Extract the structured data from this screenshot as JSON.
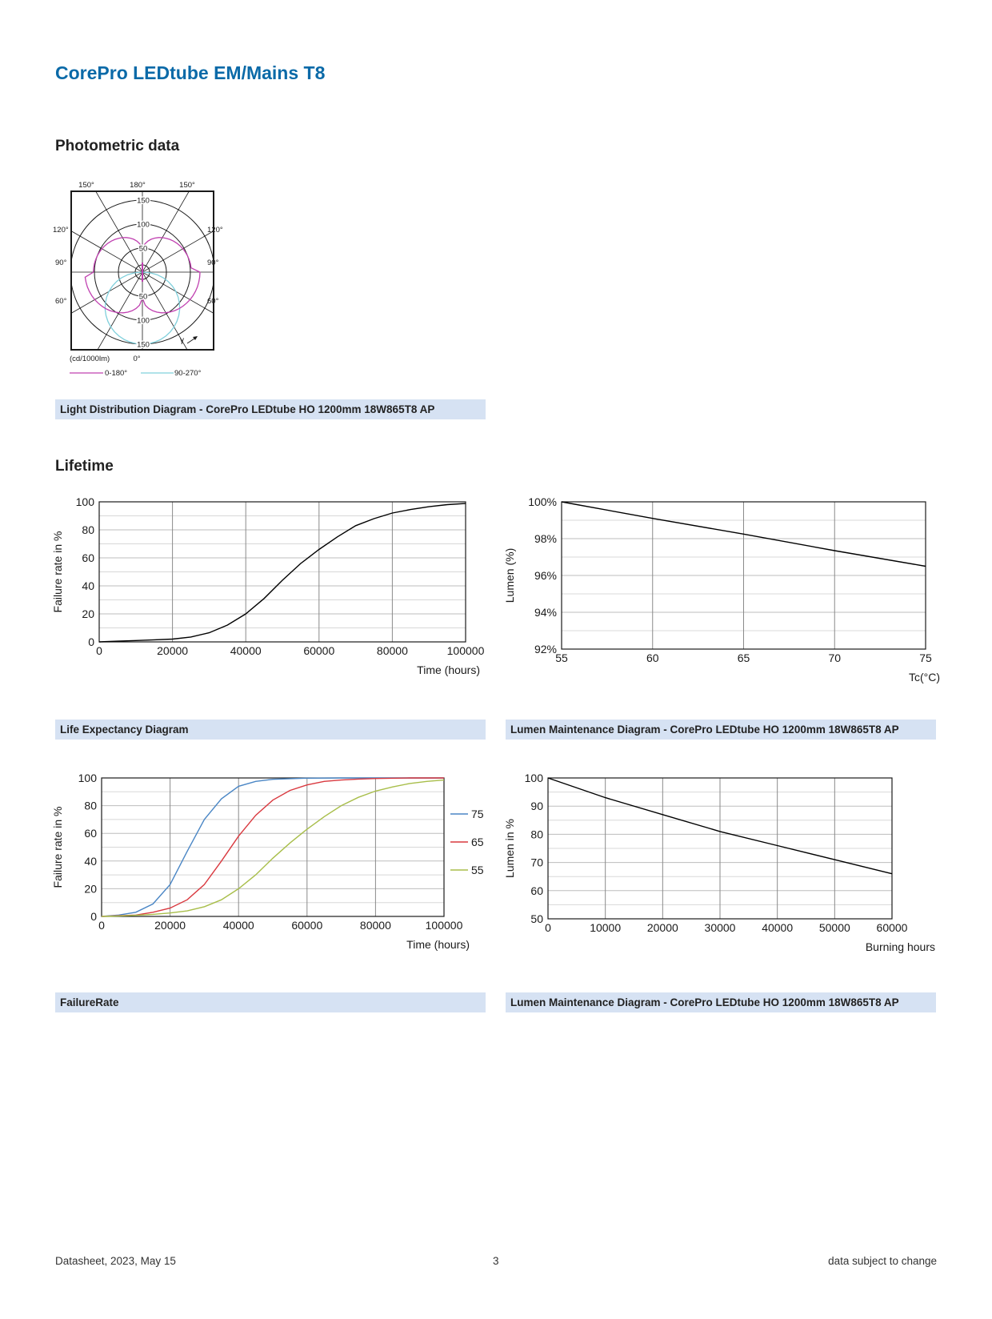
{
  "page": {
    "title": "CorePro LEDtube EM/Mains T8",
    "sections": {
      "photometric": "Photometric data",
      "lifetime": "Lifetime"
    },
    "footer": {
      "left": "Datasheet, 2023, May 15",
      "center": "3",
      "right": "data subject to change"
    }
  },
  "captions": {
    "light_distribution": "Light Distribution Diagram - CorePro LEDtube HO 1200mm 18W865T8 AP",
    "life_expectancy": "Life Expectancy Diagram",
    "lumen_tc": "Lumen Maintenance Diagram - CorePro LEDtube HO 1200mm 18W865T8 AP",
    "failure_rate": "FailureRate",
    "lumen_hours": "Lumen Maintenance Diagram - CorePro LEDtube HO 1200mm 18W865T8 AP"
  },
  "colors": {
    "title": "#0b6aa8",
    "caption_bg": "#d6e2f3",
    "magenta": "#c040b0",
    "cyan": "#80d0dc",
    "blue": "#4a86c5",
    "red": "#d9393f",
    "green": "#a8be4a"
  },
  "chart_data": [
    {
      "id": "polar",
      "type": "other",
      "subtype": "polar light distribution",
      "angle_labels": {
        "top": [
          "150°",
          "180°",
          "150°"
        ],
        "left": [
          "120°",
          "90°",
          "60°"
        ],
        "right": [
          "120°",
          "90°",
          "60°"
        ],
        "bottom": "0°"
      },
      "radial_ticks": [
        "150",
        "100",
        "50",
        "50",
        "100",
        "150"
      ],
      "unit": "(cd/1000lm)",
      "gamma_label": "γ",
      "series": [
        {
          "name": "0-180°",
          "color": "#c040b0",
          "intensity_max": 120
        },
        {
          "name": "90-270°",
          "color": "#80d0dc",
          "intensity_max": 150
        }
      ]
    },
    {
      "id": "life-expectancy",
      "type": "line",
      "xlabel": "Time (hours)",
      "ylabel": "Failure rate in %",
      "xlim": [
        0,
        100000
      ],
      "ylim": [
        0,
        100
      ],
      "x_ticks": [
        "0",
        "20000",
        "40000",
        "60000",
        "80000",
        "100000"
      ],
      "y_ticks": [
        "0",
        "20",
        "40",
        "60",
        "80",
        "100"
      ],
      "series": [
        {
          "color": "#000000",
          "x": [
            0,
            5000,
            10000,
            15000,
            20000,
            25000,
            30000,
            35000,
            40000,
            45000,
            50000,
            55000,
            60000,
            65000,
            70000,
            75000,
            80000,
            85000,
            90000,
            95000,
            100000
          ],
          "y": [
            0,
            0.5,
            1,
            1.5,
            2,
            3.5,
            6.5,
            12,
            20,
            31,
            44,
            56,
            66,
            75,
            83,
            88,
            92,
            94.5,
            96.5,
            98,
            98.8
          ]
        }
      ]
    },
    {
      "id": "lumen-tc",
      "type": "line",
      "xlabel": "Tc(°C)",
      "ylabel": "Lumen (%)",
      "xlim": [
        55,
        75
      ],
      "ylim": [
        92,
        100
      ],
      "x_ticks": [
        "55",
        "60",
        "65",
        "70",
        "75"
      ],
      "y_ticks": [
        "92%",
        "94%",
        "96%",
        "98%",
        "100%"
      ],
      "series": [
        {
          "color": "#000000",
          "x": [
            55,
            60,
            65,
            70,
            75
          ],
          "y": [
            100,
            99.1,
            98.25,
            97.35,
            96.5
          ]
        }
      ]
    },
    {
      "id": "failure-rate",
      "type": "line",
      "xlabel": "Time (hours)",
      "ylabel": "Failure rate in %",
      "xlim": [
        0,
        100000
      ],
      "ylim": [
        0,
        100
      ],
      "x_ticks": [
        "0",
        "20000",
        "40000",
        "60000",
        "80000",
        "100000"
      ],
      "y_ticks": [
        "0",
        "20",
        "40",
        "60",
        "80",
        "100"
      ],
      "legend": "right",
      "series": [
        {
          "name": "75",
          "color": "#4a86c5",
          "x": [
            0,
            5000,
            10000,
            15000,
            20000,
            25000,
            30000,
            35000,
            40000,
            45000,
            50000,
            55000,
            60000,
            70000,
            80000,
            90000,
            100000
          ],
          "y": [
            0,
            1,
            3,
            9,
            23,
            47,
            70,
            85,
            94,
            97.5,
            99,
            99.5,
            99.8,
            100,
            100,
            100,
            100
          ]
        },
        {
          "name": "65",
          "color": "#d9393f",
          "x": [
            0,
            5000,
            10000,
            15000,
            20000,
            25000,
            30000,
            35000,
            40000,
            45000,
            50000,
            55000,
            60000,
            65000,
            70000,
            75000,
            80000,
            90000,
            100000
          ],
          "y": [
            0,
            0.5,
            1,
            3,
            6,
            12,
            23,
            40,
            58,
            73,
            84,
            91,
            95,
            97.5,
            98.5,
            99.2,
            99.6,
            100,
            100
          ]
        },
        {
          "name": "55",
          "color": "#a8be4a",
          "x": [
            0,
            5000,
            10000,
            15000,
            20000,
            25000,
            30000,
            35000,
            40000,
            45000,
            50000,
            55000,
            60000,
            65000,
            70000,
            75000,
            80000,
            85000,
            90000,
            95000,
            100000
          ],
          "y": [
            0,
            0.3,
            0.8,
            1.5,
            2.5,
            4,
            7,
            12,
            20,
            30,
            42,
            53,
            63,
            72,
            80,
            86,
            90.5,
            93.5,
            96,
            97.5,
            98.5
          ]
        }
      ]
    },
    {
      "id": "lumen-hours",
      "type": "line",
      "xlabel": "Burning hours",
      "ylabel": "Lumen in %",
      "xlim": [
        0,
        60000
      ],
      "ylim": [
        50,
        100
      ],
      "x_ticks": [
        "0",
        "10000",
        "20000",
        "30000",
        "40000",
        "50000",
        "60000"
      ],
      "y_ticks": [
        "50",
        "60",
        "70",
        "80",
        "90",
        "100"
      ],
      "series": [
        {
          "color": "#000000",
          "x": [
            0,
            10000,
            20000,
            30000,
            40000,
            50000,
            60000
          ],
          "y": [
            100,
            93,
            87,
            81,
            76,
            71,
            66
          ]
        }
      ]
    }
  ]
}
